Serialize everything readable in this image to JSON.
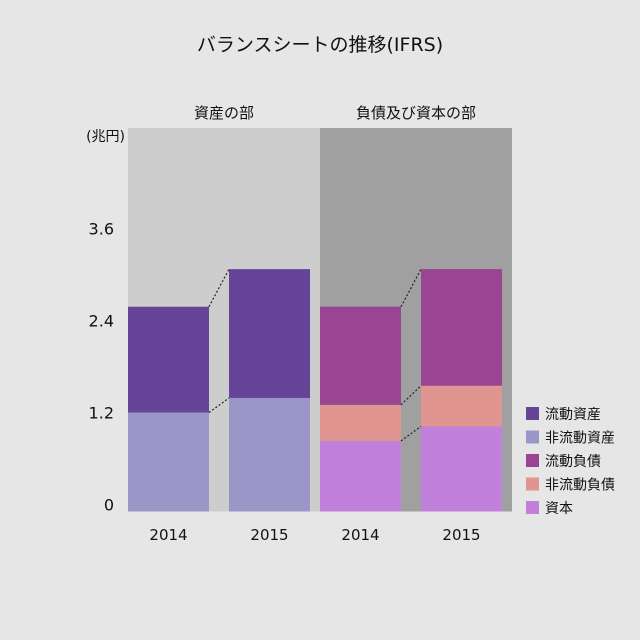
{
  "chart_data": {
    "type": "bar",
    "stacked": true,
    "title": "バランスシートの推移(IFRS)",
    "ylabel": "(兆円)",
    "ylim": [
      0,
      5
    ],
    "yticks": [
      "0",
      "1.2",
      "2.4",
      "3.6"
    ],
    "ytick_values": [
      0,
      1.2,
      2.4,
      3.6
    ],
    "grid": false,
    "legend_position": "right-bottom",
    "panels": [
      {
        "label": "資産の部",
        "background": "#cdcdcd",
        "categories": [
          "2014",
          "2015"
        ],
        "series": [
          {
            "name": "非流動資産",
            "color": "#9a96c8",
            "values": [
              1.29,
              1.48
            ]
          },
          {
            "name": "流動資産",
            "color": "#664497",
            "values": [
              1.38,
              1.68
            ]
          }
        ]
      },
      {
        "label": "負債及び資本の部",
        "background": "#a0a0a0",
        "categories": [
          "2014",
          "2015"
        ],
        "series": [
          {
            "name": "資本",
            "color": "#c080dc",
            "values": [
              0.92,
              1.11
            ]
          },
          {
            "name": "非流動負債",
            "color": "#e09590",
            "values": [
              0.47,
              0.53
            ]
          },
          {
            "name": "流動負債",
            "color": "#9a4494",
            "values": [
              1.28,
              1.52
            ]
          }
        ]
      }
    ],
    "legend": [
      {
        "name": "流動資産",
        "color": "#664497"
      },
      {
        "name": "非流動資産",
        "color": "#9a96c8"
      },
      {
        "name": "流動負債",
        "color": "#9a4494"
      },
      {
        "name": "非流動負債",
        "color": "#e09590"
      },
      {
        "name": "資本",
        "color": "#c080dc"
      }
    ]
  }
}
